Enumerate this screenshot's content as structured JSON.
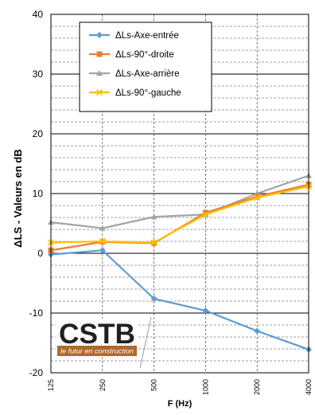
{
  "chart_data": {
    "type": "line",
    "x": [
      "125",
      "250",
      "500",
      "1000",
      "2000",
      "4000"
    ],
    "xlabel": "F (Hz)",
    "ylabel": "ΔLS - Valeurs en dB",
    "ylim": [
      -20,
      40
    ],
    "yticks": [
      -20,
      -10,
      0,
      10,
      20,
      30,
      40
    ],
    "minor_gridlines_per_major": 5,
    "x_scale": "log",
    "grid": true,
    "legend_position": "top-center",
    "series": [
      {
        "name": "ΔLs-Axe-entrée",
        "color": "#5b9bd5",
        "marker": "diamond",
        "values": [
          -0.2,
          0.5,
          -7.6,
          -9.6,
          -13.0,
          -16.1
        ]
      },
      {
        "name": "ΔLs-90°-droite",
        "color": "#ed7d31",
        "marker": "square",
        "values": [
          0.5,
          1.9,
          1.7,
          6.8,
          9.5,
          11.5
        ]
      },
      {
        "name": "ΔLs-Axe-arrière",
        "color": "#a5a5a5",
        "marker": "triangle",
        "values": [
          5.2,
          4.2,
          6.1,
          6.5,
          10.0,
          13.0
        ]
      },
      {
        "name": "ΔLs-90°-gauche",
        "color": "#ffc000",
        "marker": "x",
        "values": [
          1.8,
          2.0,
          1.8,
          6.5,
          9.3,
          11.2
        ]
      }
    ]
  },
  "logo": {
    "name": "CSTB",
    "tagline": "le futur en construction"
  }
}
